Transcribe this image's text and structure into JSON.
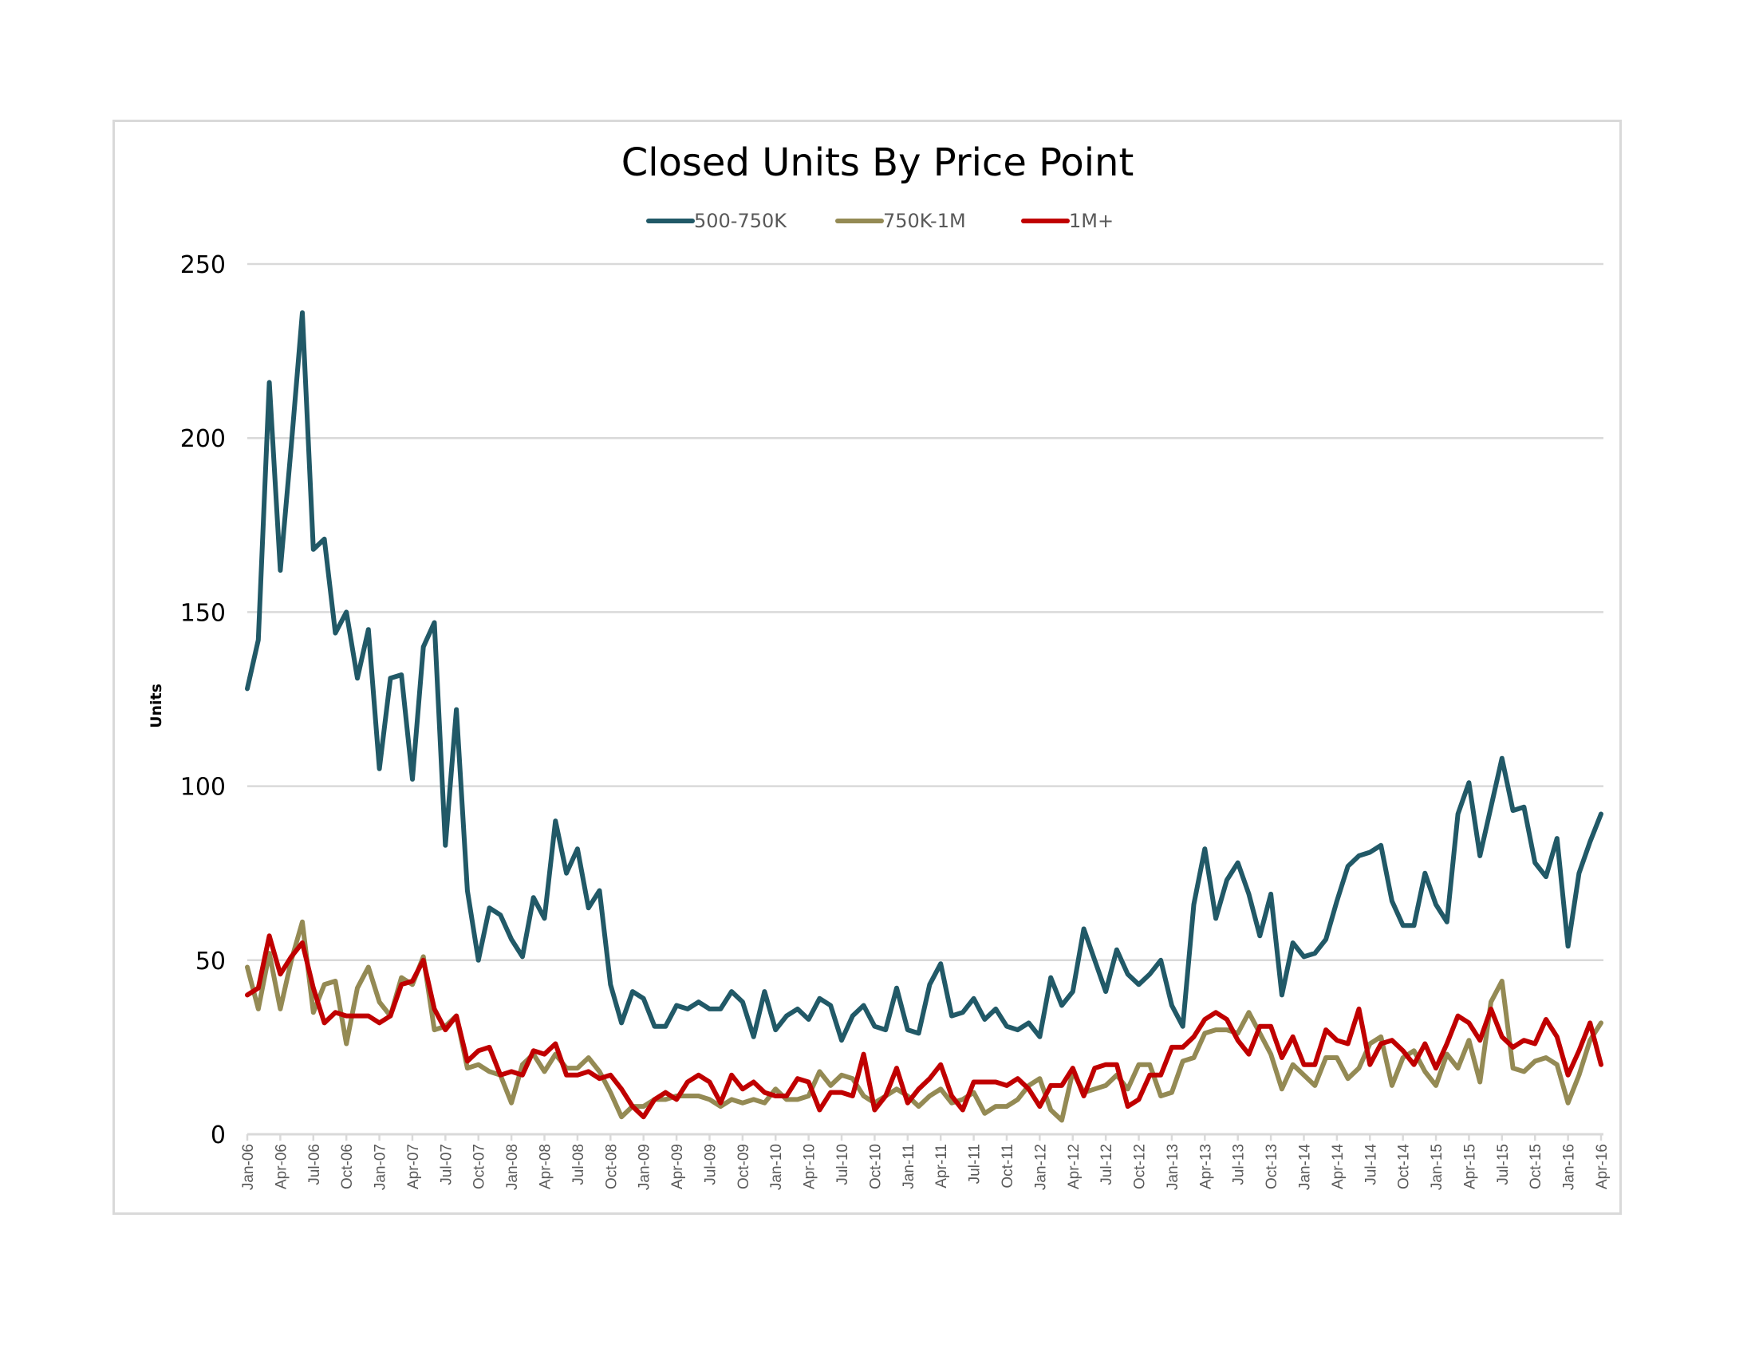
{
  "chart_data": {
    "type": "line",
    "title": "Closed Units By Price Point",
    "xlabel": "",
    "ylabel": "Units",
    "ylim": [
      0,
      250
    ],
    "yticks": [
      0,
      50,
      100,
      150,
      200,
      250
    ],
    "grid": true,
    "legend_position": "top",
    "x_start": "Jan-06",
    "x_end": "Apr-16",
    "x_step": "monthly",
    "xtick_labels": [
      "Jan-06",
      "Apr-06",
      "Jul-06",
      "Oct-06",
      "Jan-07",
      "Apr-07",
      "Jul-07",
      "Oct-07",
      "Jan-08",
      "Apr-08",
      "Jul-08",
      "Oct-08",
      "Jan-09",
      "Apr-09",
      "Jul-09",
      "Oct-09",
      "Jan-10",
      "Apr-10",
      "Jul-10",
      "Oct-10",
      "Jan-11",
      "Apr-11",
      "Jul-11",
      "Oct-11",
      "Jan-12",
      "Apr-12",
      "Jul-12",
      "Oct-12",
      "Jan-13",
      "Apr-13",
      "Jul-13",
      "Oct-13",
      "Jan-14",
      "Apr-14",
      "Jul-14",
      "Oct-14",
      "Jan-15",
      "Apr-15",
      "Jul-15",
      "Oct-15",
      "Jan-16",
      "Apr-16"
    ],
    "series": [
      {
        "name": "500-750K",
        "color": "#215967",
        "values": [
          128,
          142,
          216,
          162,
          198,
          236,
          168,
          171,
          144,
          150,
          131,
          145,
          105,
          131,
          132,
          102,
          140,
          147,
          83,
          122,
          70,
          50,
          65,
          63,
          56,
          51,
          68,
          62,
          90,
          75,
          82,
          65,
          70,
          43,
          32,
          41,
          39,
          31,
          31,
          37,
          36,
          38,
          36,
          36,
          41,
          38,
          28,
          41,
          30,
          34,
          36,
          33,
          39,
          37,
          27,
          34,
          37,
          31,
          30,
          42,
          30,
          29,
          43,
          49,
          34,
          35,
          39,
          33,
          36,
          31,
          30,
          32,
          28,
          45,
          37,
          41,
          59,
          50,
          41,
          53,
          46,
          43,
          46,
          50,
          37,
          31,
          66,
          82,
          62,
          73,
          78,
          69,
          57,
          69,
          40,
          55,
          51,
          52,
          56,
          67,
          77,
          80,
          81,
          83,
          67,
          60,
          60,
          75,
          66,
          61,
          92,
          101,
          80,
          94,
          108,
          93,
          94,
          78,
          74,
          85,
          54,
          75,
          84,
          92
        ]
      },
      {
        "name": "750K-1M",
        "color": "#948A54",
        "values": [
          48,
          36,
          52,
          36,
          50,
          61,
          35,
          43,
          44,
          26,
          42,
          48,
          38,
          34,
          45,
          43,
          51,
          30,
          31,
          34,
          19,
          20,
          18,
          17,
          9,
          20,
          23,
          18,
          23,
          19,
          19,
          22,
          18,
          12,
          5,
          8,
          8,
          10,
          10,
          11,
          11,
          11,
          10,
          8,
          10,
          9,
          10,
          9,
          13,
          10,
          10,
          11,
          18,
          14,
          17,
          16,
          11,
          9,
          11,
          13,
          11,
          8,
          11,
          13,
          9,
          10,
          12,
          6,
          8,
          8,
          10,
          14,
          16,
          7,
          4,
          18,
          12,
          13,
          14,
          17,
          13,
          20,
          20,
          11,
          12,
          21,
          22,
          29,
          30,
          30,
          29,
          35,
          29,
          23,
          13,
          20,
          17,
          14,
          22,
          22,
          16,
          19,
          26,
          28,
          14,
          22,
          24,
          18,
          14,
          23,
          19,
          27,
          15,
          38,
          44,
          19,
          18,
          21,
          22,
          20,
          9,
          17,
          27,
          32
        ]
      },
      {
        "name": "1M+",
        "color": "#C00000",
        "values": [
          40,
          42,
          57,
          46,
          51,
          55,
          42,
          32,
          35,
          34,
          34,
          34,
          32,
          34,
          43,
          44,
          50,
          36,
          30,
          34,
          21,
          24,
          25,
          17,
          18,
          17,
          24,
          23,
          26,
          17,
          17,
          18,
          16,
          17,
          13,
          8,
          5,
          10,
          12,
          10,
          15,
          17,
          15,
          9,
          17,
          13,
          15,
          12,
          11,
          11,
          16,
          15,
          7,
          12,
          12,
          11,
          23,
          7,
          11,
          19,
          9,
          13,
          16,
          20,
          11,
          7,
          15,
          15,
          15,
          14,
          16,
          13,
          8,
          14,
          14,
          19,
          11,
          19,
          20,
          20,
          8,
          10,
          17,
          17,
          25,
          25,
          28,
          33,
          35,
          33,
          27,
          23,
          31,
          31,
          22,
          28,
          20,
          20,
          30,
          27,
          26,
          36,
          20,
          26,
          27,
          24,
          20,
          26,
          19,
          26,
          34,
          32,
          27,
          36,
          28,
          25,
          27,
          26,
          33,
          28,
          17,
          24,
          32,
          20
        ]
      }
    ]
  }
}
